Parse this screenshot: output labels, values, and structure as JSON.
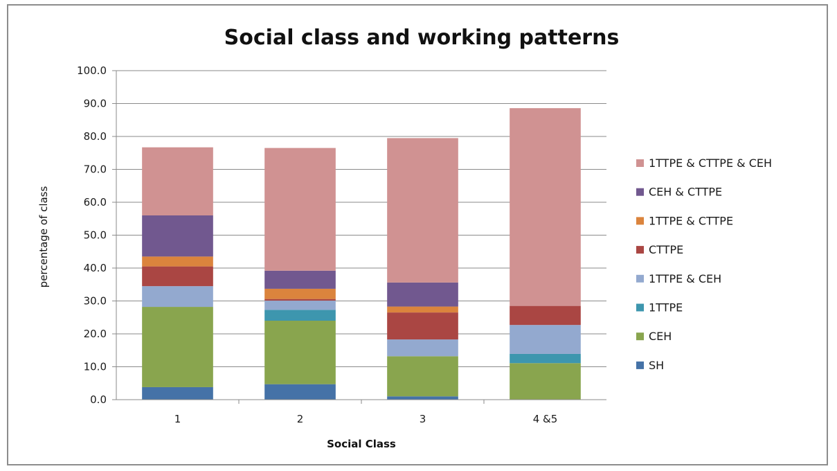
{
  "chart_data": {
    "type": "bar",
    "stacked": true,
    "title": "Social class and working patterns",
    "xlabel": "Social Class",
    "ylabel": "percentage of class",
    "categories": [
      "1",
      "2",
      "3",
      "4 &5"
    ],
    "ylim": [
      0,
      100
    ],
    "yticks": [
      "0.0",
      "10.0",
      "20.0",
      "30.0",
      "40.0",
      "50.0",
      "60.0",
      "70.0",
      "80.0",
      "90.0",
      "100.0"
    ],
    "grid": true,
    "legend_position": "right",
    "series": [
      {
        "name": "SH",
        "color": "#4572a7",
        "values": [
          3.8,
          4.7,
          1.0,
          0.0
        ]
      },
      {
        "name": "CEH",
        "color": "#89a54e",
        "values": [
          24.4,
          19.3,
          12.2,
          11.1
        ]
      },
      {
        "name": "1TTPE",
        "color": "#3d96ae",
        "values": [
          0.0,
          3.3,
          0.0,
          2.8
        ]
      },
      {
        "name": "1TTPE & CEH",
        "color": "#93a9cf",
        "values": [
          6.3,
          2.8,
          5.1,
          8.8
        ]
      },
      {
        "name": "CTTPE",
        "color": "#aa4643",
        "values": [
          6.0,
          0.5,
          8.2,
          5.8
        ]
      },
      {
        "name": "1TTPE & CTTPE",
        "color": "#db843d",
        "values": [
          3.0,
          3.1,
          1.8,
          0.0
        ]
      },
      {
        "name": "CEH & CTTPE",
        "color": "#71588f",
        "values": [
          12.5,
          5.5,
          7.3,
          0.0
        ]
      },
      {
        "name": "1TTPE  & CTTPE & CEH",
        "color": "#d09292",
        "values": [
          20.7,
          37.3,
          43.9,
          60.1
        ]
      }
    ]
  }
}
